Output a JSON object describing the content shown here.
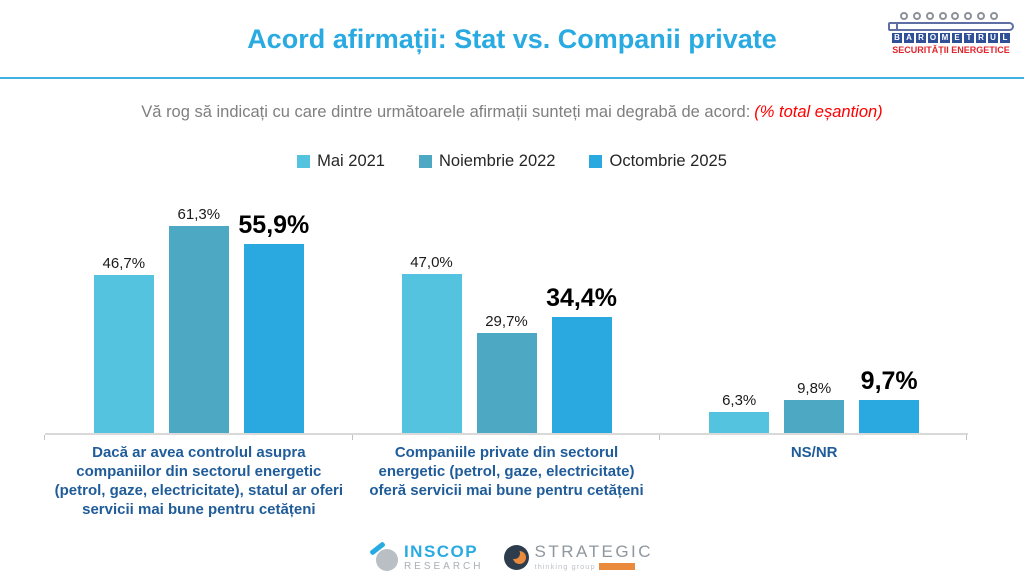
{
  "header": {
    "title": "Acord afirmații: Stat vs. Companii private",
    "logo": {
      "line1": "BAROMETRUL",
      "line2": "SECURITĂȚII ENERGETICE"
    }
  },
  "subtitle": {
    "question": "Vă rog să indicați cu care dintre următoarele afirmații sunteți mai degrabă de acord:",
    "note": "(% total eșantion)"
  },
  "chart_data": {
    "type": "bar",
    "title": "Acord afirmații: Stat vs. Companii private",
    "categories": [
      "Dacă ar avea controlul asupra companiilor din sectorul energetic (petrol, gaze, electricitate), statul ar oferi servicii mai bune pentru cetățeni",
      "Companiile private din sectorul energetic (petrol, gaze, electricitate) oferă servicii mai bune pentru cetățeni",
      "NS/NR"
    ],
    "series": [
      {
        "name": "Mai 2021",
        "color": "#54C3E0",
        "values": [
          46.7,
          47.0,
          6.3
        ],
        "labels": [
          "46,7%",
          "47,0%",
          "6,3%"
        ],
        "emphasized": false
      },
      {
        "name": "Noiembrie 2022",
        "color": "#4DA8C4",
        "values": [
          61.3,
          29.7,
          9.8
        ],
        "labels": [
          "61,3%",
          "29,7%",
          "9,8%"
        ],
        "emphasized": false
      },
      {
        "name": "Octombrie 2025",
        "color": "#29A9E0",
        "values": [
          55.9,
          34.4,
          9.7
        ],
        "labels": [
          "55,9%",
          "34,4%",
          "9,7%"
        ],
        "emphasized": true
      }
    ],
    "ylim": [
      0,
      70
    ],
    "grid": false,
    "legend_position": "top",
    "xlabel": "",
    "ylabel": "",
    "value_label_format": "decimal-comma percent above each bar; current wave shown bold"
  },
  "colors": {
    "title": "#29ABE2",
    "header_rule": "#41B3E3",
    "subtitle_text": "#7F7F7F",
    "note_text": "#FF0000",
    "category_label": "#1F5C99",
    "axis_line": "#D9D9D9"
  },
  "footer": {
    "inscop": {
      "name": "INSCOP",
      "sub": "RESEARCH"
    },
    "strategic": {
      "name": "STRATEGIC",
      "sub": "thinking group"
    }
  }
}
